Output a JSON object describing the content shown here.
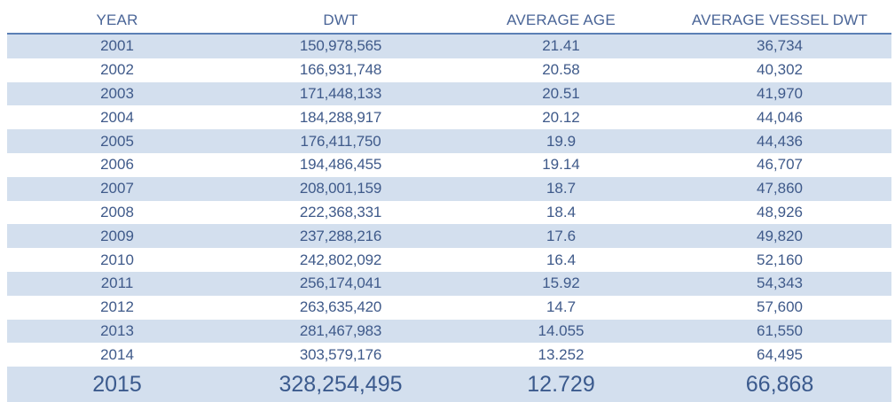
{
  "chart_data": {
    "type": "table",
    "columns": [
      "YEAR",
      "DWT",
      "AVERAGE AGE",
      "AVERAGE VESSEL DWT"
    ],
    "rows": [
      [
        "2001",
        "150,978,565",
        "21.41",
        "36,734"
      ],
      [
        "2002",
        "166,931,748",
        "20.58",
        "40,302"
      ],
      [
        "2003",
        "171,448,133",
        "20.51",
        "41,970"
      ],
      [
        "2004",
        "184,288,917",
        "20.12",
        "44,046"
      ],
      [
        "2005",
        "176,411,750",
        "19.9",
        "44,436"
      ],
      [
        "2006",
        "194,486,455",
        "19.14",
        "46,707"
      ],
      [
        "2007",
        "208,001,159",
        "18.7",
        "47,860"
      ],
      [
        "2008",
        "222,368,331",
        "18.4",
        "48,926"
      ],
      [
        "2009",
        "237,288,216",
        "17.6",
        "49,820"
      ],
      [
        "2010",
        "242,802,092",
        "16.4",
        "52,160"
      ],
      [
        "2011",
        "256,174,041",
        "15.92",
        "54,343"
      ],
      [
        "2012",
        "263,635,420",
        "14.7",
        "57,600"
      ],
      [
        "2013",
        "281,467,983",
        "14.055",
        "61,550"
      ],
      [
        "2014",
        "303,579,176",
        "13.252",
        "64,495"
      ],
      [
        "2015",
        "328,254,495",
        "12.729",
        "66,868"
      ]
    ],
    "colors": {
      "text": "#3f5a8a",
      "header_rule": "#5b7fb5",
      "row_shade": "#d3dfee"
    }
  }
}
